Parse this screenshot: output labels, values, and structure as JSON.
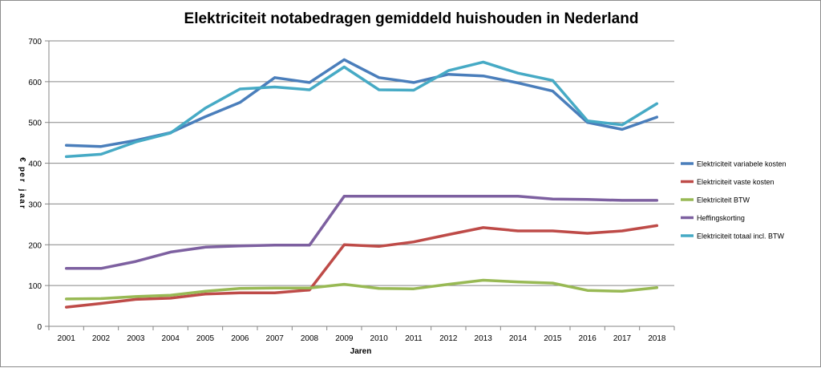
{
  "chart_data": {
    "type": "line",
    "title": "Elektriciteit notabedragen gemiddeld huishouden in Nederland",
    "xlabel": "Jaren",
    "ylabel": "€ per jaar",
    "ylim": [
      0,
      700
    ],
    "yticks": [
      0,
      100,
      200,
      300,
      400,
      500,
      600,
      700
    ],
    "grid": "horizontal",
    "legend_position": "right",
    "categories": [
      "2001",
      "2002",
      "2003",
      "2004",
      "2005",
      "2006",
      "2007",
      "2008",
      "2009",
      "2010",
      "2011",
      "2012",
      "2013",
      "2014",
      "2015",
      "2016",
      "2017",
      "2018"
    ],
    "series": [
      {
        "name": "Elektriciteit variabele kosten",
        "color": "#4a7ebb",
        "values": [
          444,
          441,
          456,
          475,
          514,
          549,
          610,
          598,
          654,
          610,
          598,
          618,
          614,
          597,
          577,
          500,
          483,
          513
        ]
      },
      {
        "name": "Elektriciteit vaste kosten",
        "color": "#be4b48",
        "values": [
          47,
          56,
          66,
          69,
          79,
          82,
          82,
          89,
          200,
          196,
          207,
          225,
          242,
          234,
          234,
          228,
          234,
          247
        ]
      },
      {
        "name": "Elektriciteit BTW",
        "color": "#98b954",
        "values": [
          67,
          68,
          73,
          76,
          86,
          93,
          94,
          94,
          103,
          93,
          92,
          103,
          113,
          109,
          106,
          88,
          86,
          95
        ]
      },
      {
        "name": "Heffingskorting",
        "color": "#7d60a0",
        "values": [
          142,
          142,
          159,
          182,
          194,
          197,
          199,
          199,
          319,
          319,
          319,
          319,
          319,
          319,
          312,
          311,
          309,
          309
        ]
      },
      {
        "name": "Elektriciteit totaal incl. BTW",
        "color": "#46aac5",
        "values": [
          416,
          422,
          452,
          474,
          535,
          582,
          587,
          580,
          636,
          580,
          579,
          627,
          648,
          621,
          603,
          504,
          494,
          546
        ]
      }
    ]
  }
}
